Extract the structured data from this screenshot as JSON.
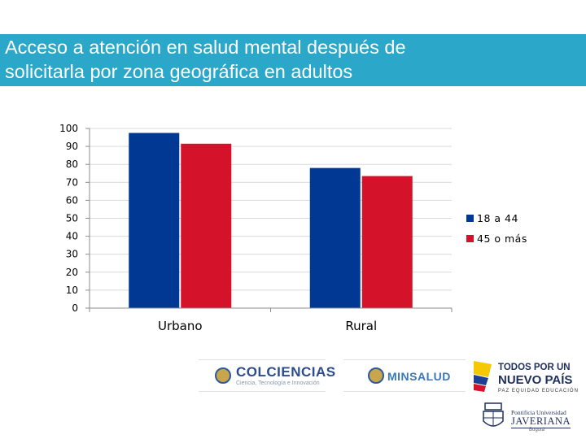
{
  "slide": {
    "title_line1": "Acceso a atención en salud mental después de",
    "title_line2": "solicitarla  por zona geográfica en adultos",
    "title_bg": "#2aa7c9"
  },
  "chart_data": {
    "type": "bar",
    "title": "Acceso a atención en salud mental después de solicitarla  por zona geográfica en adultos",
    "categories": [
      "Urbano",
      "Rural"
    ],
    "series": [
      {
        "name": "18 a 44",
        "color": "#003893",
        "values": [
          97.5,
          78
        ]
      },
      {
        "name": "45 o más",
        "color": "#d4132a",
        "values": [
          91.5,
          73.5
        ]
      }
    ],
    "ylim": [
      0,
      100
    ],
    "yticks": [
      "0",
      "10",
      "20",
      "30",
      "40",
      "50",
      "60",
      "70",
      "80",
      "90",
      "100"
    ],
    "grid": true,
    "legend_position": "right",
    "xlabel": "",
    "ylabel": ""
  },
  "logos": {
    "colciencias": {
      "name": "COLCIENCIAS",
      "subtitle": "Ciencia, Tecnología e Innovación"
    },
    "minsalud": {
      "name": "MINSALUD"
    },
    "todos": {
      "line1": "TODOS POR UN",
      "line2": "NUEVO PAÍS",
      "line3": "PAZ  EQUIDAD  EDUCACIÓN"
    },
    "javeriana": {
      "line1": "Pontificia Universidad",
      "line2": "JAVERIANA",
      "line3": "Bogotá"
    }
  }
}
